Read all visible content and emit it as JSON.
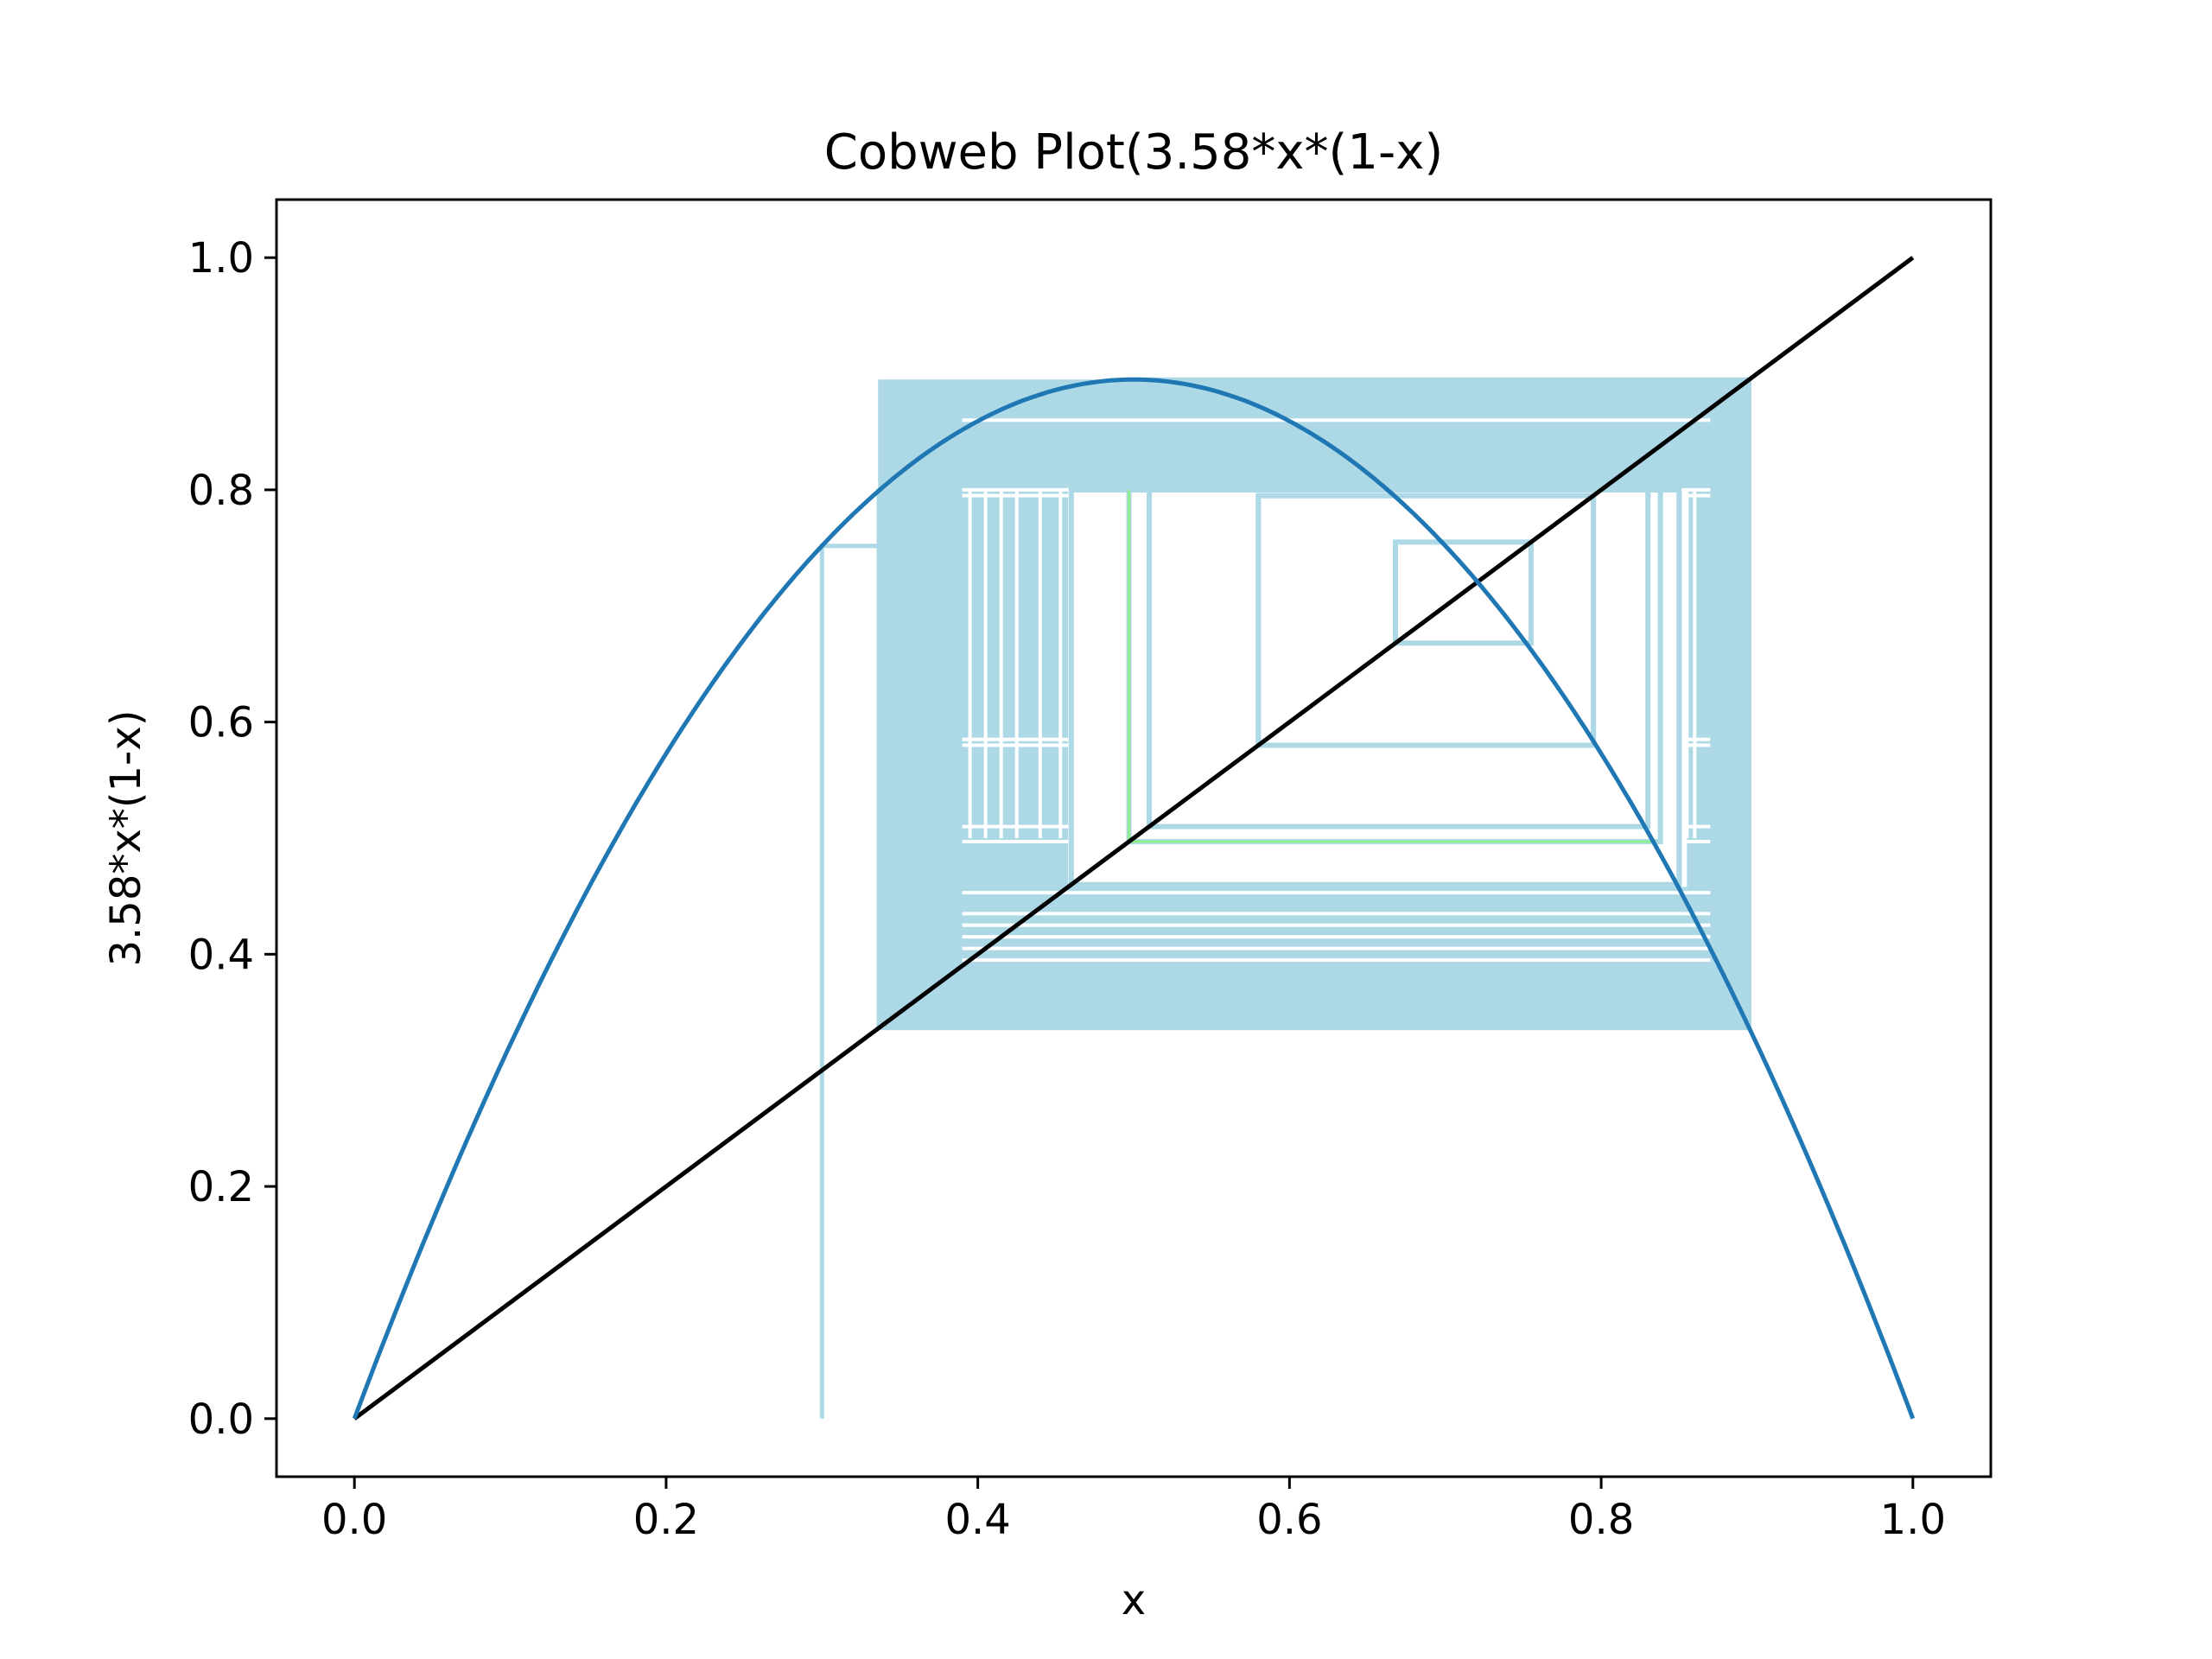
{
  "chart_data": {
    "type": "line",
    "title": "Cobweb Plot(3.58*x*(1-x)",
    "xlabel": "x",
    "ylabel": "3.58*x*(1-x)",
    "xlim": [
      -0.05,
      1.05
    ],
    "ylim": [
      -0.05,
      1.05
    ],
    "xticks": [
      0.0,
      0.2,
      0.4,
      0.6,
      0.8,
      1.0
    ],
    "yticks": [
      0.0,
      0.2,
      0.4,
      0.6,
      0.8,
      1.0
    ],
    "xtick_labels": [
      "0.0",
      "0.2",
      "0.4",
      "0.6",
      "0.8",
      "1.0"
    ],
    "ytick_labels": [
      "0.0",
      "0.2",
      "0.4",
      "0.6",
      "0.8",
      "1.0"
    ],
    "grid": false,
    "legend": "none",
    "map_parameter_r": 3.58,
    "initial_x": 0.3,
    "series": [
      {
        "kind": "curve",
        "formula": "3.58*x*(1-x)",
        "color": "#1f77b4"
      },
      {
        "kind": "identity",
        "x": [
          0,
          1
        ],
        "y": [
          0,
          1
        ],
        "color": "#000000"
      },
      {
        "kind": "cobweb",
        "x0": 0.3,
        "iterations": 60,
        "color": "#add8e6"
      },
      {
        "kind": "cobweb-highlight",
        "x0": 0.497,
        "y0": 0.497,
        "color": "#90ee90"
      }
    ],
    "cobweb_band": {
      "x_min": 0.336,
      "x_max": 0.895,
      "y_min": 0.336,
      "y_max": 0.895,
      "color": "#add8e6"
    },
    "cobweb_gaps_vertical_x": [
      0.395,
      0.405,
      0.415,
      0.425,
      0.44,
      0.453,
      0.497,
      0.51,
      0.52,
      0.535,
      0.55,
      0.58,
      0.585,
      0.795,
      0.8,
      0.855,
      0.86
    ],
    "cobweb_gaps_horizontal_y": [
      0.395,
      0.405,
      0.415,
      0.425,
      0.435,
      0.453,
      0.497,
      0.51,
      0.58,
      0.585,
      0.795,
      0.8,
      0.86
    ],
    "inner_box_rects": [
      {
        "x1": 0.668,
        "x2": 0.755,
        "y1": 0.668,
        "y2": 0.755
      },
      {
        "x1": 0.58,
        "x2": 0.795,
        "y1": 0.58,
        "y2": 0.795
      }
    ]
  }
}
